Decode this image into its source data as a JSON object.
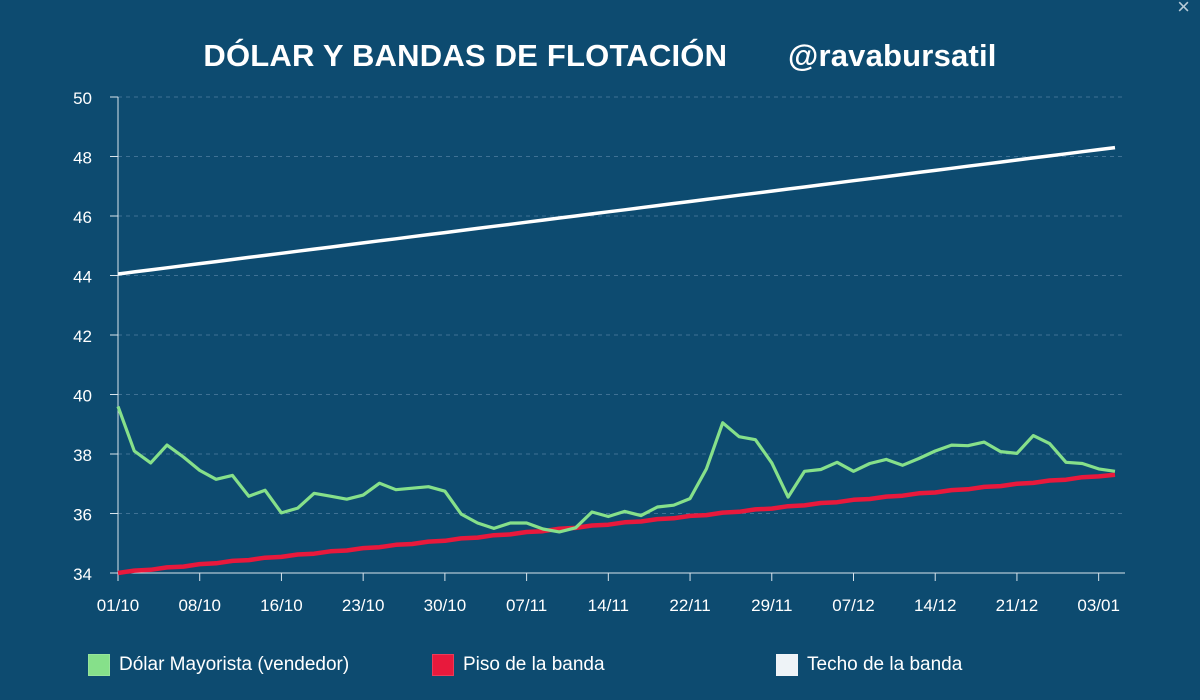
{
  "header": {
    "title": "DÓLAR Y BANDAS DE FLOTACIÓN",
    "handle": "@ravabursatil",
    "close_glyph": "×"
  },
  "colors": {
    "background": "#0d4b70",
    "dolar": "#86e08a",
    "piso": "#e8193c",
    "techo": "#ffffff",
    "axis_text": "#ffffff",
    "grid": "#3f7194"
  },
  "chart_data": {
    "type": "line",
    "title": "DÓLAR Y BANDAS DE FLOTACIÓN",
    "xlabel": "",
    "ylabel": "",
    "ylim": [
      34,
      50
    ],
    "yticks": [
      34,
      36,
      38,
      40,
      42,
      44,
      46,
      48,
      50
    ],
    "x_tick_labels": [
      "01/10",
      "08/10",
      "16/10",
      "23/10",
      "30/10",
      "07/11",
      "14/11",
      "22/11",
      "29/11",
      "07/12",
      "14/12",
      "21/12",
      "03/01"
    ],
    "x_tick_index": [
      0,
      5,
      10,
      15,
      20,
      25,
      30,
      35,
      40,
      45,
      50,
      55,
      60
    ],
    "grid": "horizontal dashed",
    "legend_position": "bottom",
    "series": [
      {
        "name": "Dólar Mayorista (vendedor)",
        "color": "#86e08a",
        "values": [
          39.6,
          38.1,
          37.7,
          38.3,
          37.9,
          37.45,
          37.15,
          37.28,
          36.58,
          36.78,
          36.02,
          36.18,
          36.68,
          36.58,
          36.48,
          36.62,
          37.02,
          36.8,
          36.85,
          36.9,
          36.75,
          35.98,
          35.68,
          35.5,
          35.68,
          35.68,
          35.48,
          35.38,
          35.52,
          36.05,
          35.9,
          36.07,
          35.93,
          36.22,
          36.28,
          36.5,
          37.5,
          39.05,
          38.58,
          38.48,
          37.7,
          36.55,
          37.42,
          37.48,
          37.72,
          37.42,
          37.68,
          37.82,
          37.62,
          37.85,
          38.1,
          38.3,
          38.28,
          38.4,
          38.08,
          38.02,
          38.62,
          38.35,
          37.72,
          37.68,
          37.5,
          37.42
        ]
      },
      {
        "name": "Piso de la banda",
        "color": "#e8193c",
        "start": 34.0,
        "end": 37.3,
        "points": 62
      },
      {
        "name": "Techo de la banda",
        "color": "#ffffff",
        "start": 44.05,
        "end": 48.3,
        "points": 62
      }
    ]
  }
}
